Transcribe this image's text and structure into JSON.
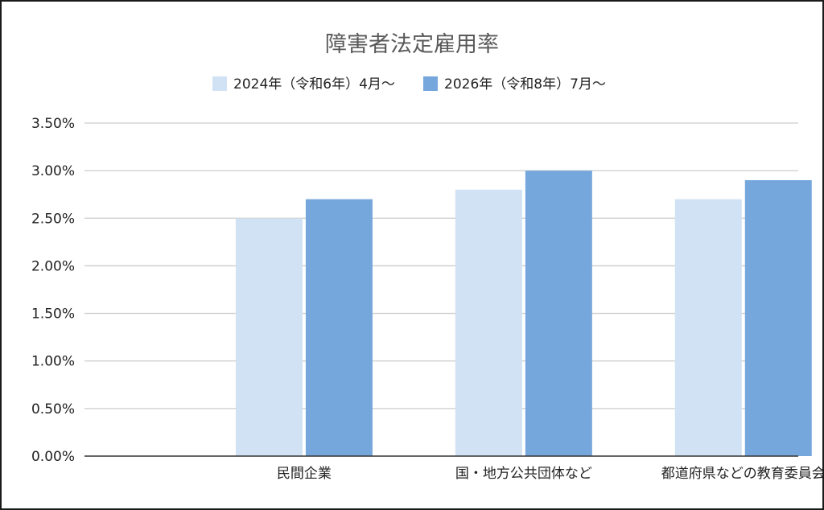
{
  "chart_data": {
    "type": "bar",
    "title": "障害者法定雇用率",
    "categories": [
      "民間企業",
      "国・地方公共団体など",
      "都道府県などの教育委員会"
    ],
    "series": [
      {
        "name": "2024年（令和6年）4月～",
        "values": [
          2.5,
          2.8,
          2.7
        ],
        "color": "#d0e2f3"
      },
      {
        "name": "2026年（令和8年）7月～",
        "values": [
          2.7,
          3.0,
          2.9
        ],
        "color": "#76a7dc"
      }
    ],
    "ylim": [
      0,
      3.5
    ],
    "yticks": [
      0,
      0.5,
      1.0,
      1.5,
      2.0,
      2.5,
      3.0,
      3.5
    ],
    "ytick_labels": [
      "0.00%",
      "0.50%",
      "1.00%",
      "1.50%",
      "2.00%",
      "2.50%",
      "3.00%",
      "3.50%"
    ],
    "grid": true,
    "legend_position": "top"
  }
}
